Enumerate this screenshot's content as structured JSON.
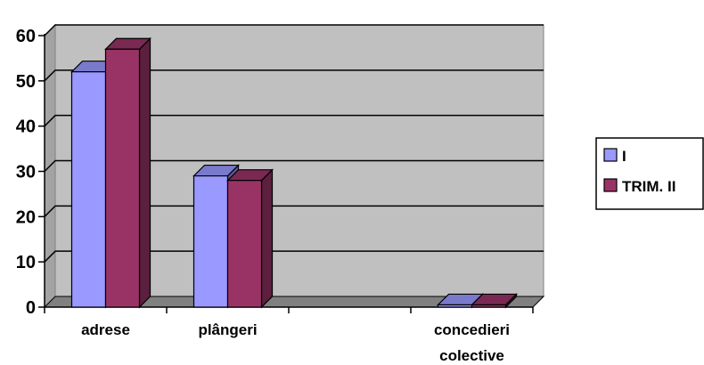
{
  "chart_data": {
    "type": "bar",
    "categories": [
      "adrese",
      "plângeri",
      "",
      "concedieri colective"
    ],
    "category_lines": [
      [
        "adrese"
      ],
      [
        "plângeri"
      ],
      [],
      [
        "concedieri",
        "colective"
      ]
    ],
    "series": [
      {
        "name": "I",
        "values": [
          52,
          29,
          0,
          0.5
        ],
        "color": "#9999ff"
      },
      {
        "name": "TRIM. II",
        "values": [
          57,
          28,
          0,
          0.5
        ],
        "color": "#993366"
      }
    ],
    "ylim": [
      0,
      60
    ],
    "yticks": [
      "0",
      "10",
      "20",
      "30",
      "40",
      "50",
      "60"
    ],
    "grid": true,
    "legend_position": "right",
    "wall_color": "#c0c0c0",
    "floor_color": "#808080"
  }
}
